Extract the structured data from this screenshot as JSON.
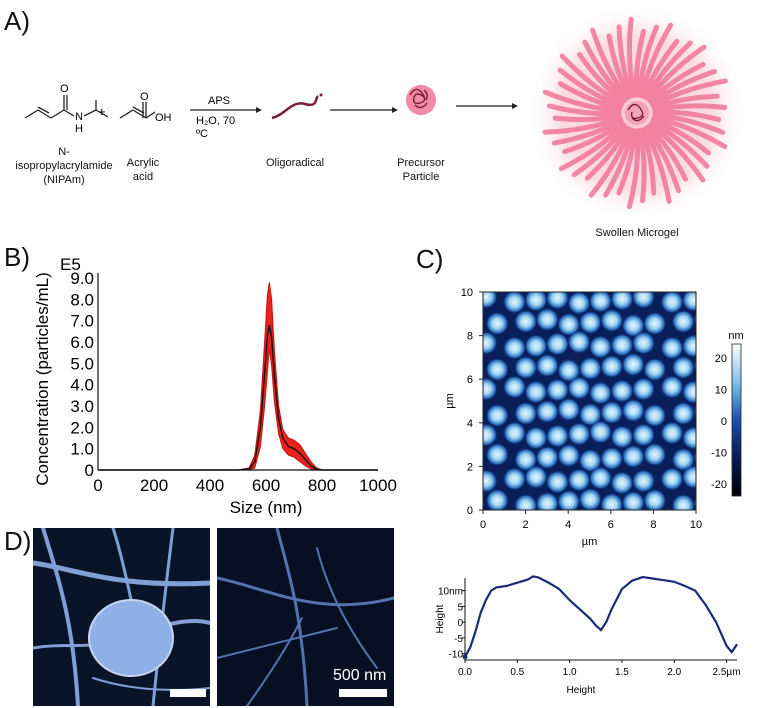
{
  "labels": {
    "a": "A)",
    "b": "B)",
    "c": "C)",
    "d": "D)"
  },
  "panel_a": {
    "nipam_label": "N-\nisopropylacrylamide\n(NIPAm)",
    "plus": "+",
    "acrylic_label": "Acrylic\nacid",
    "atom_n": "N",
    "atom_h": "H",
    "atom_o1": "O",
    "atom_o2": "O",
    "atom_oh": "OH",
    "arrow_top": "APS",
    "arrow_bottom_1": "H₂O, 70",
    "arrow_bottom_2": "ºC",
    "oligoradical": "Oligoradical",
    "precursor": "Precursor\nParticle",
    "swollen": "Swollen Microgel",
    "colors": {
      "pink": "#ef5b84",
      "pink_light": "#f7b6c8",
      "dark": "#7a1f33"
    }
  },
  "panel_b": {
    "exponent": "E5",
    "ylabel": "Concentration (particles/mL)",
    "xlabel": "Size (nm)",
    "x_ticks": [
      "0",
      "200",
      "400",
      "600",
      "800",
      "1000"
    ],
    "y_ticks": [
      "0",
      "1.0",
      "2.0",
      "3.0",
      "4.0",
      "5.0",
      "6.0",
      "7.0",
      "8.0",
      "9.0"
    ]
  },
  "panel_c": {
    "x_ticks": [
      "0",
      "2",
      "4",
      "6",
      "8",
      "10"
    ],
    "y_ticks": [
      "0",
      "2",
      "4",
      "6",
      "8",
      "10"
    ],
    "xlabel": "µm",
    "ylabel": "µm",
    "cbar_unit": "nm",
    "cbar_ticks": [
      "20",
      "10",
      "0",
      "-10",
      "-20"
    ],
    "profile_xlabel": "Height",
    "profile_ylabel": "Height",
    "profile_x_ticks": [
      "0.0",
      "0.5",
      "1.0",
      "1.5",
      "2.0",
      "2.5µm"
    ],
    "profile_y_ticks": [
      "10nm",
      "5",
      "0",
      "-5",
      "-10"
    ]
  },
  "panel_d": {
    "scalebar_text": "500 nm"
  },
  "chart_data": [
    {
      "type": "area",
      "title": "",
      "xlabel": "Size (nm)",
      "ylabel": "Concentration (particles/mL)",
      "y_multiplier": "E5",
      "xlim": [
        0,
        1000
      ],
      "ylim": [
        0,
        9
      ],
      "series": [
        {
          "x": [
            0,
            500,
            540,
            560,
            580,
            595,
            605,
            612,
            620,
            630,
            645,
            660,
            680,
            700,
            720,
            740,
            760,
            780,
            800,
            1000
          ],
          "values": [
            0,
            0,
            0.05,
            0.4,
            2.0,
            4.5,
            6.3,
            6.8,
            6.2,
            4.4,
            2.4,
            1.5,
            1.1,
            1.0,
            0.8,
            0.5,
            0.2,
            0.05,
            0,
            0
          ]
        },
        {
          "name": "upper",
          "x": [
            0,
            500,
            540,
            560,
            580,
            595,
            605,
            612,
            620,
            630,
            645,
            660,
            680,
            700,
            720,
            740,
            760,
            780,
            800,
            1000
          ],
          "values": [
            0,
            0,
            0.1,
            0.7,
            2.8,
            6.0,
            8.2,
            8.8,
            8.0,
            5.6,
            3.0,
            1.9,
            1.5,
            1.4,
            1.2,
            0.8,
            0.4,
            0.1,
            0,
            0
          ]
        },
        {
          "name": "lower",
          "x": [
            0,
            500,
            540,
            560,
            580,
            595,
            605,
            612,
            620,
            630,
            645,
            660,
            680,
            700,
            720,
            740,
            760,
            780,
            800,
            1000
          ],
          "values": [
            0,
            0,
            0,
            0.1,
            1.1,
            3.0,
            4.6,
            5.7,
            4.9,
            3.2,
            1.7,
            1.0,
            0.7,
            0.6,
            0.4,
            0.2,
            0.05,
            0,
            0,
            0
          ]
        }
      ]
    },
    {
      "type": "line",
      "title": "",
      "xlabel": "Height",
      "ylabel": "Height",
      "xlim": [
        0,
        2.6
      ],
      "ylim": [
        -12,
        14
      ],
      "series": [
        {
          "x": [
            0,
            0.05,
            0.1,
            0.15,
            0.2,
            0.25,
            0.3,
            0.4,
            0.5,
            0.6,
            0.65,
            0.7,
            0.8,
            0.9,
            1.0,
            1.1,
            1.2,
            1.25,
            1.3,
            1.35,
            1.4,
            1.5,
            1.6,
            1.7,
            1.8,
            1.9,
            2.0,
            2.1,
            2.2,
            2.3,
            2.4,
            2.5,
            2.55,
            2.6
          ],
          "values": [
            -11,
            -8,
            -3,
            3,
            7,
            10,
            11,
            11.5,
            12.5,
            13.5,
            14.5,
            14.2,
            12.5,
            10.5,
            7,
            4,
            1,
            -1,
            -2.5,
            0,
            4,
            10.5,
            13.2,
            14.3,
            13.8,
            13.3,
            12.8,
            11.5,
            10,
            5.5,
            0,
            -7.5,
            -9.5,
            -7
          ]
        }
      ]
    }
  ]
}
